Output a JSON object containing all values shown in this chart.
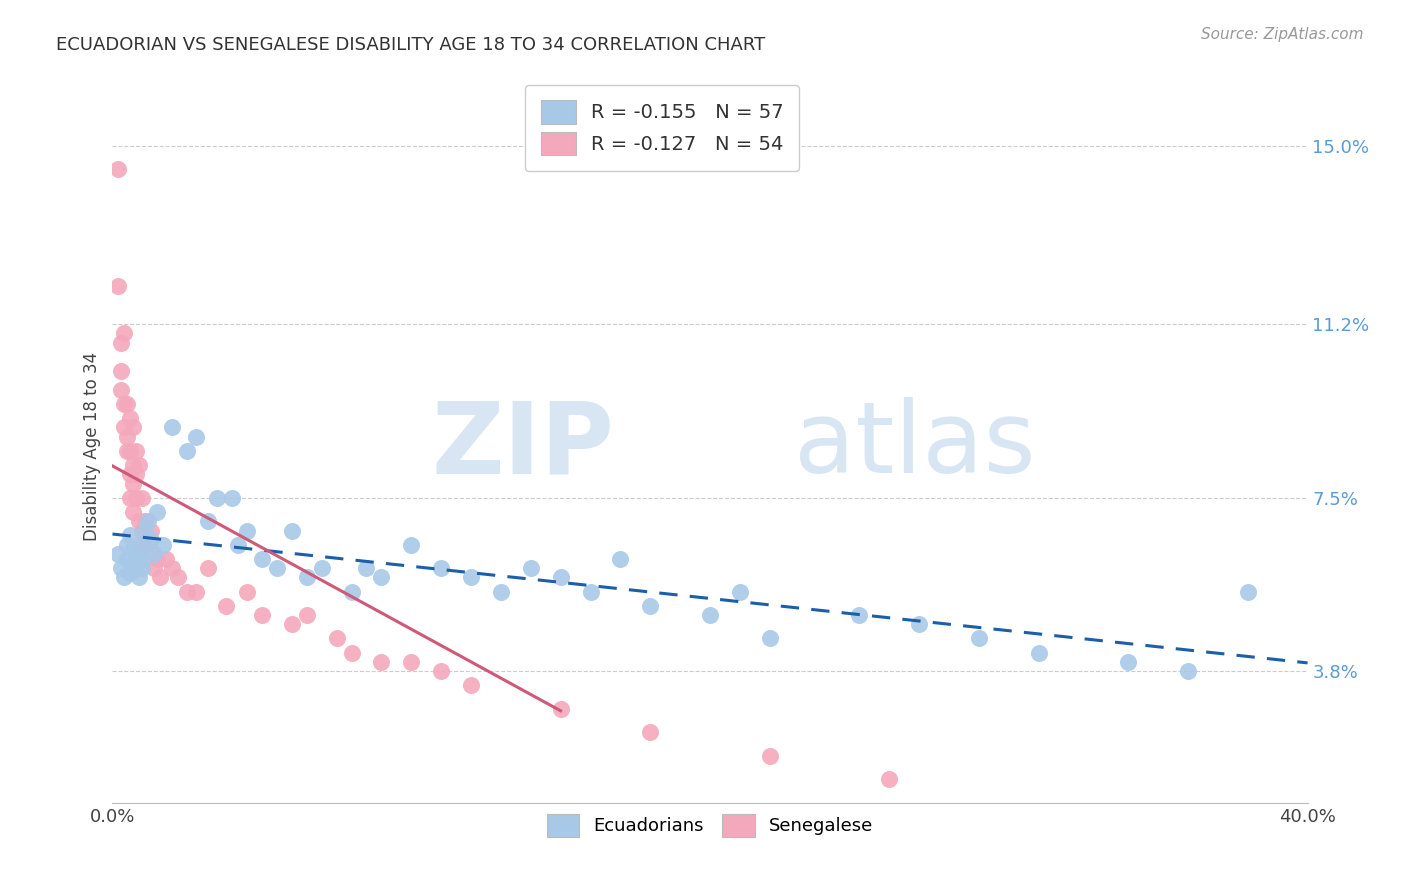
{
  "title": "ECUADORIAN VS SENEGALESE DISABILITY AGE 18 TO 34 CORRELATION CHART",
  "source": "Source: ZipAtlas.com",
  "ylabel": "Disability Age 18 to 34",
  "ytick_labels": [
    "3.8%",
    "7.5%",
    "11.2%",
    "15.0%"
  ],
  "ytick_values": [
    0.038,
    0.075,
    0.112,
    0.15
  ],
  "xmin": 0.0,
  "xmax": 0.4,
  "ymin": 0.01,
  "ymax": 0.162,
  "legend_label1": "Ecuadorians",
  "legend_label2": "Senegalese",
  "R1": -0.155,
  "N1": 57,
  "R2": -0.127,
  "N2": 54,
  "color_blue": "#A8C8E8",
  "color_pink": "#F4A8BC",
  "color_blue_line": "#1A5FA8",
  "color_pink_line": "#D05878",
  "ecuadorians_x": [
    0.002,
    0.003,
    0.004,
    0.005,
    0.005,
    0.006,
    0.006,
    0.007,
    0.007,
    0.008,
    0.008,
    0.009,
    0.009,
    0.01,
    0.01,
    0.01,
    0.011,
    0.012,
    0.013,
    0.014,
    0.015,
    0.017,
    0.02,
    0.025,
    0.028,
    0.032,
    0.035,
    0.04,
    0.042,
    0.045,
    0.05,
    0.055,
    0.06,
    0.065,
    0.07,
    0.08,
    0.085,
    0.09,
    0.1,
    0.11,
    0.12,
    0.13,
    0.14,
    0.15,
    0.16,
    0.17,
    0.18,
    0.2,
    0.21,
    0.22,
    0.25,
    0.27,
    0.29,
    0.31,
    0.34,
    0.36,
    0.38
  ],
  "ecuadorians_y": [
    0.063,
    0.06,
    0.058,
    0.065,
    0.062,
    0.059,
    0.067,
    0.061,
    0.064,
    0.06,
    0.063,
    0.058,
    0.062,
    0.06,
    0.065,
    0.062,
    0.068,
    0.07,
    0.066,
    0.063,
    0.072,
    0.065,
    0.09,
    0.085,
    0.088,
    0.07,
    0.075,
    0.075,
    0.065,
    0.068,
    0.062,
    0.06,
    0.068,
    0.058,
    0.06,
    0.055,
    0.06,
    0.058,
    0.065,
    0.06,
    0.058,
    0.055,
    0.06,
    0.058,
    0.055,
    0.062,
    0.052,
    0.05,
    0.055,
    0.045,
    0.05,
    0.048,
    0.045,
    0.042,
    0.04,
    0.038,
    0.055
  ],
  "senegalese_x": [
    0.002,
    0.002,
    0.003,
    0.003,
    0.003,
    0.004,
    0.004,
    0.004,
    0.005,
    0.005,
    0.005,
    0.006,
    0.006,
    0.006,
    0.006,
    0.007,
    0.007,
    0.007,
    0.007,
    0.008,
    0.008,
    0.008,
    0.009,
    0.009,
    0.01,
    0.01,
    0.01,
    0.011,
    0.012,
    0.013,
    0.014,
    0.015,
    0.016,
    0.018,
    0.02,
    0.022,
    0.025,
    0.028,
    0.032,
    0.038,
    0.045,
    0.05,
    0.06,
    0.065,
    0.075,
    0.08,
    0.09,
    0.1,
    0.11,
    0.12,
    0.15,
    0.18,
    0.22,
    0.26
  ],
  "senegalese_y": [
    0.145,
    0.12,
    0.108,
    0.102,
    0.098,
    0.095,
    0.11,
    0.09,
    0.095,
    0.088,
    0.085,
    0.092,
    0.085,
    0.08,
    0.075,
    0.09,
    0.082,
    0.078,
    0.072,
    0.085,
    0.08,
    0.075,
    0.082,
    0.07,
    0.075,
    0.068,
    0.065,
    0.07,
    0.065,
    0.068,
    0.06,
    0.062,
    0.058,
    0.062,
    0.06,
    0.058,
    0.055,
    0.055,
    0.06,
    0.052,
    0.055,
    0.05,
    0.048,
    0.05,
    0.045,
    0.042,
    0.04,
    0.04,
    0.038,
    0.035,
    0.03,
    0.025,
    0.02,
    0.015
  ]
}
